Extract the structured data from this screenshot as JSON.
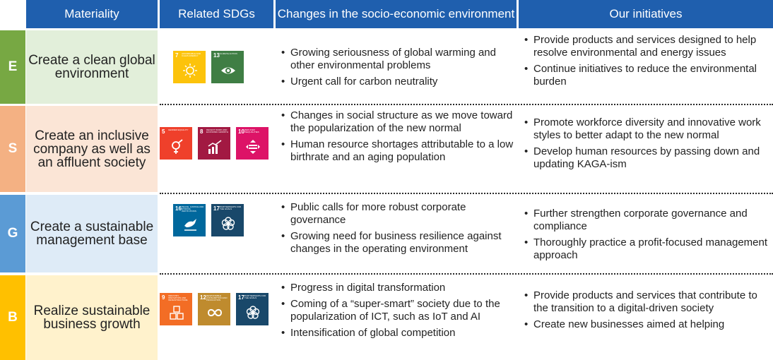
{
  "headers": {
    "materiality": "Materiality",
    "sdgs": "Related SDGs",
    "changes": "Changes in the socio-economic environment",
    "initiatives": "Our initiatives"
  },
  "rows": [
    {
      "letter": "E",
      "letter_color": "#77a843",
      "bg_color": "#e2efda",
      "materiality": "Create a clean global environment",
      "sdgs": [
        {
          "num": "7",
          "title": "AFFORDABLE AND CLEAN ENERGY",
          "color": "#fcc30b",
          "icon": "sun-icon"
        },
        {
          "num": "13",
          "title": "CLIMATE ACTION",
          "color": "#3f7e44",
          "icon": "eye-globe-icon"
        }
      ],
      "changes": [
        "Growing seriousness of global warming and other environmental problems",
        "Urgent call for carbon neutrality"
      ],
      "initiatives": [
        "Provide products and services designed to help resolve environmental and energy issues",
        "Continue initiatives to reduce the environmental burden"
      ]
    },
    {
      "letter": "S",
      "letter_color": "#f4b183",
      "bg_color": "#fbe5d6",
      "materiality": "Create an inclusive company as well as an affluent society",
      "sdgs": [
        {
          "num": "5",
          "title": "GENDER EQUALITY",
          "color": "#ef402b",
          "icon": "gender-icon"
        },
        {
          "num": "8",
          "title": "DECENT WORK AND ECONOMIC GROWTH",
          "color": "#a21942",
          "icon": "growth-chart-icon"
        },
        {
          "num": "10",
          "title": "REDUCED INEQUALITIES",
          "color": "#dd1367",
          "icon": "equality-icon"
        }
      ],
      "changes": [
        "Changes in social structure as we move toward the popularization of the new normal",
        "Human resource shortages attributable to a low birthrate and an aging population"
      ],
      "initiatives": [
        "Promote workforce diversity and innovative work styles to better adapt to the new normal",
        "Develop human resources by passing down and updating KAGA-ism"
      ]
    },
    {
      "letter": "G",
      "letter_color": "#5b9bd5",
      "bg_color": "#deebf7",
      "materiality": "Create a sustainable management base",
      "sdgs": [
        {
          "num": "16",
          "title": "PEACE, JUSTICE AND STRONG INSTITUTIONS",
          "color": "#00689d",
          "icon": "dove-icon"
        },
        {
          "num": "17",
          "title": "PARTNERSHIPS FOR THE GOALS",
          "color": "#19486a",
          "icon": "flower-rings-icon"
        }
      ],
      "changes": [
        "Public calls for more robust corporate governance",
        "Growing need for business resilience against changes in the operating environment"
      ],
      "initiatives": [
        "Further strengthen corporate governance and compliance",
        "Thoroughly practice a profit-focused management approach"
      ]
    },
    {
      "letter": "B",
      "letter_color": "#ffc000",
      "bg_color": "#fff2cc",
      "materiality": "Realize sustainable business growth",
      "sdgs": [
        {
          "num": "9",
          "title": "INDUSTRY, INNOVATION AND INFRASTRUCTURE",
          "color": "#f36d25",
          "icon": "cubes-icon"
        },
        {
          "num": "12",
          "title": "RESPONSIBLE CONSUMPTION AND PRODUCTION",
          "color": "#bf8b2e",
          "icon": "infinity-icon"
        },
        {
          "num": "17",
          "title": "PARTNERSHIPS FOR THE GOALS",
          "color": "#19486a",
          "icon": "flower-rings-icon"
        }
      ],
      "changes": [
        "Progress in digital transformation",
        "Coming of a “super-smart” society due to the popularization of ICT, such as IoT and AI",
        "Intensification of global competition"
      ],
      "initiatives": [
        "Provide products and services that contribute to the transition to a digital-driven society",
        "Create new businesses aimed at helping"
      ]
    }
  ]
}
